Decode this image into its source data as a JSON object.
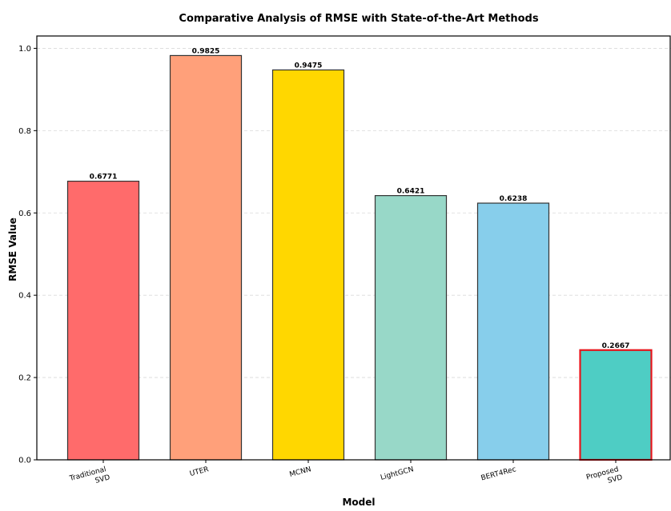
{
  "chart_data": {
    "type": "bar",
    "title": "Comparative Analysis of RMSE with State-of-the-Art Methods",
    "xlabel": "Model",
    "ylabel": "RMSE Value",
    "categories": [
      [
        "Traditional",
        "SVD"
      ],
      [
        "UTER"
      ],
      [
        "MCNN"
      ],
      [
        "LightGCN"
      ],
      [
        "BERT4Rec"
      ],
      [
        "Proposed",
        "SVD"
      ]
    ],
    "values": [
      0.6771,
      0.9825,
      0.9475,
      0.6421,
      0.6238,
      0.2667
    ],
    "value_labels": [
      "0.6771",
      "0.9825",
      "0.9475",
      "0.6421",
      "0.6238",
      "0.2667"
    ],
    "colors": [
      "#ff6b6b",
      "#ffa07a",
      "#ffd700",
      "#98d8c8",
      "#87ceeb",
      "#4ecdc4"
    ],
    "edge_colors": [
      "#333333",
      "#333333",
      "#333333",
      "#333333",
      "#333333",
      "#e8141b"
    ],
    "ylim": [
      0,
      1.03
    ],
    "yticks": [
      0.0,
      0.2,
      0.4,
      0.6,
      0.8,
      1.0
    ],
    "ytick_labels": [
      "0.0",
      "0.2",
      "0.4",
      "0.6",
      "0.8",
      "1.0"
    ],
    "grid": true,
    "grid_axis": "y",
    "legend": "none"
  }
}
